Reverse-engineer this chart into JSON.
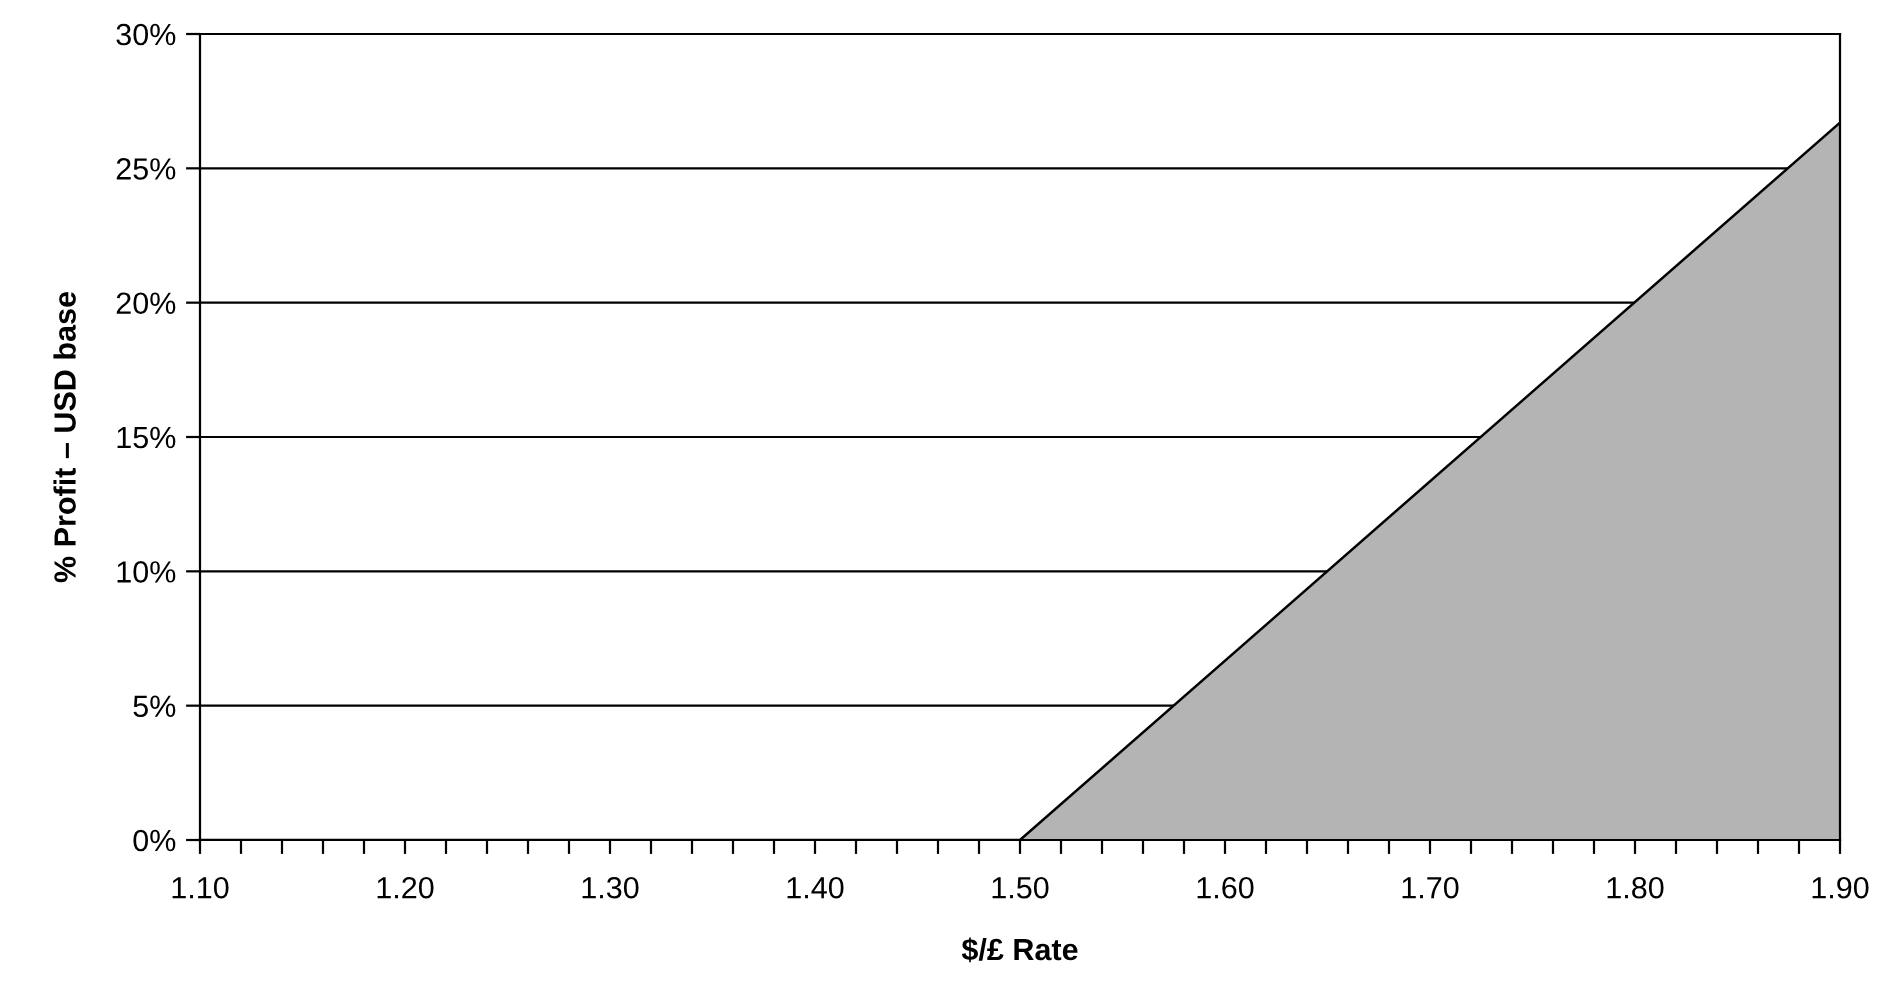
{
  "chart_data": {
    "type": "area",
    "xlabel": "$/£ Rate",
    "ylabel": "% Profit – USD base",
    "x": [
      1.1,
      1.5,
      1.9
    ],
    "values": [
      0,
      0,
      26.7
    ],
    "color": "#b4b4b4",
    "xlim": [
      1.1,
      1.9
    ],
    "xticks": [
      {
        "value": 1.1,
        "label": "1.10"
      },
      {
        "value": 1.12,
        "label": null
      },
      {
        "value": 1.14,
        "label": null
      },
      {
        "value": 1.16,
        "label": null
      },
      {
        "value": 1.18,
        "label": null
      },
      {
        "value": 1.2,
        "label": "1.20"
      },
      {
        "value": 1.22,
        "label": null
      },
      {
        "value": 1.24,
        "label": null
      },
      {
        "value": 1.26,
        "label": null
      },
      {
        "value": 1.28,
        "label": null
      },
      {
        "value": 1.3,
        "label": "1.30"
      },
      {
        "value": 1.32,
        "label": null
      },
      {
        "value": 1.34,
        "label": null
      },
      {
        "value": 1.36,
        "label": null
      },
      {
        "value": 1.38,
        "label": null
      },
      {
        "value": 1.4,
        "label": "1.40"
      },
      {
        "value": 1.42,
        "label": null
      },
      {
        "value": 1.44,
        "label": null
      },
      {
        "value": 1.46,
        "label": null
      },
      {
        "value": 1.48,
        "label": null
      },
      {
        "value": 1.5,
        "label": "1.50"
      },
      {
        "value": 1.52,
        "label": null
      },
      {
        "value": 1.54,
        "label": null
      },
      {
        "value": 1.56,
        "label": null
      },
      {
        "value": 1.58,
        "label": null
      },
      {
        "value": 1.6,
        "label": "1.60"
      },
      {
        "value": 1.62,
        "label": null
      },
      {
        "value": 1.64,
        "label": null
      },
      {
        "value": 1.66,
        "label": null
      },
      {
        "value": 1.68,
        "label": null
      },
      {
        "value": 1.7,
        "label": "1.70"
      },
      {
        "value": 1.72,
        "label": null
      },
      {
        "value": 1.74,
        "label": null
      },
      {
        "value": 1.76,
        "label": null
      },
      {
        "value": 1.78,
        "label": null
      },
      {
        "value": 1.8,
        "label": "1.80"
      },
      {
        "value": 1.82,
        "label": null
      },
      {
        "value": 1.84,
        "label": null
      },
      {
        "value": 1.86,
        "label": null
      },
      {
        "value": 1.88,
        "label": null
      },
      {
        "value": 1.9,
        "label": "1.90"
      }
    ],
    "ylim": [
      0,
      30
    ],
    "yticks": [
      {
        "value": 0,
        "label": "0%"
      },
      {
        "value": 5,
        "label": "5%"
      },
      {
        "value": 10,
        "label": "10%"
      },
      {
        "value": 15,
        "label": "15%"
      },
      {
        "value": 20,
        "label": "20%"
      },
      {
        "value": 25,
        "label": "25%"
      },
      {
        "value": 30,
        "label": "30%"
      }
    ],
    "grid": "y"
  }
}
